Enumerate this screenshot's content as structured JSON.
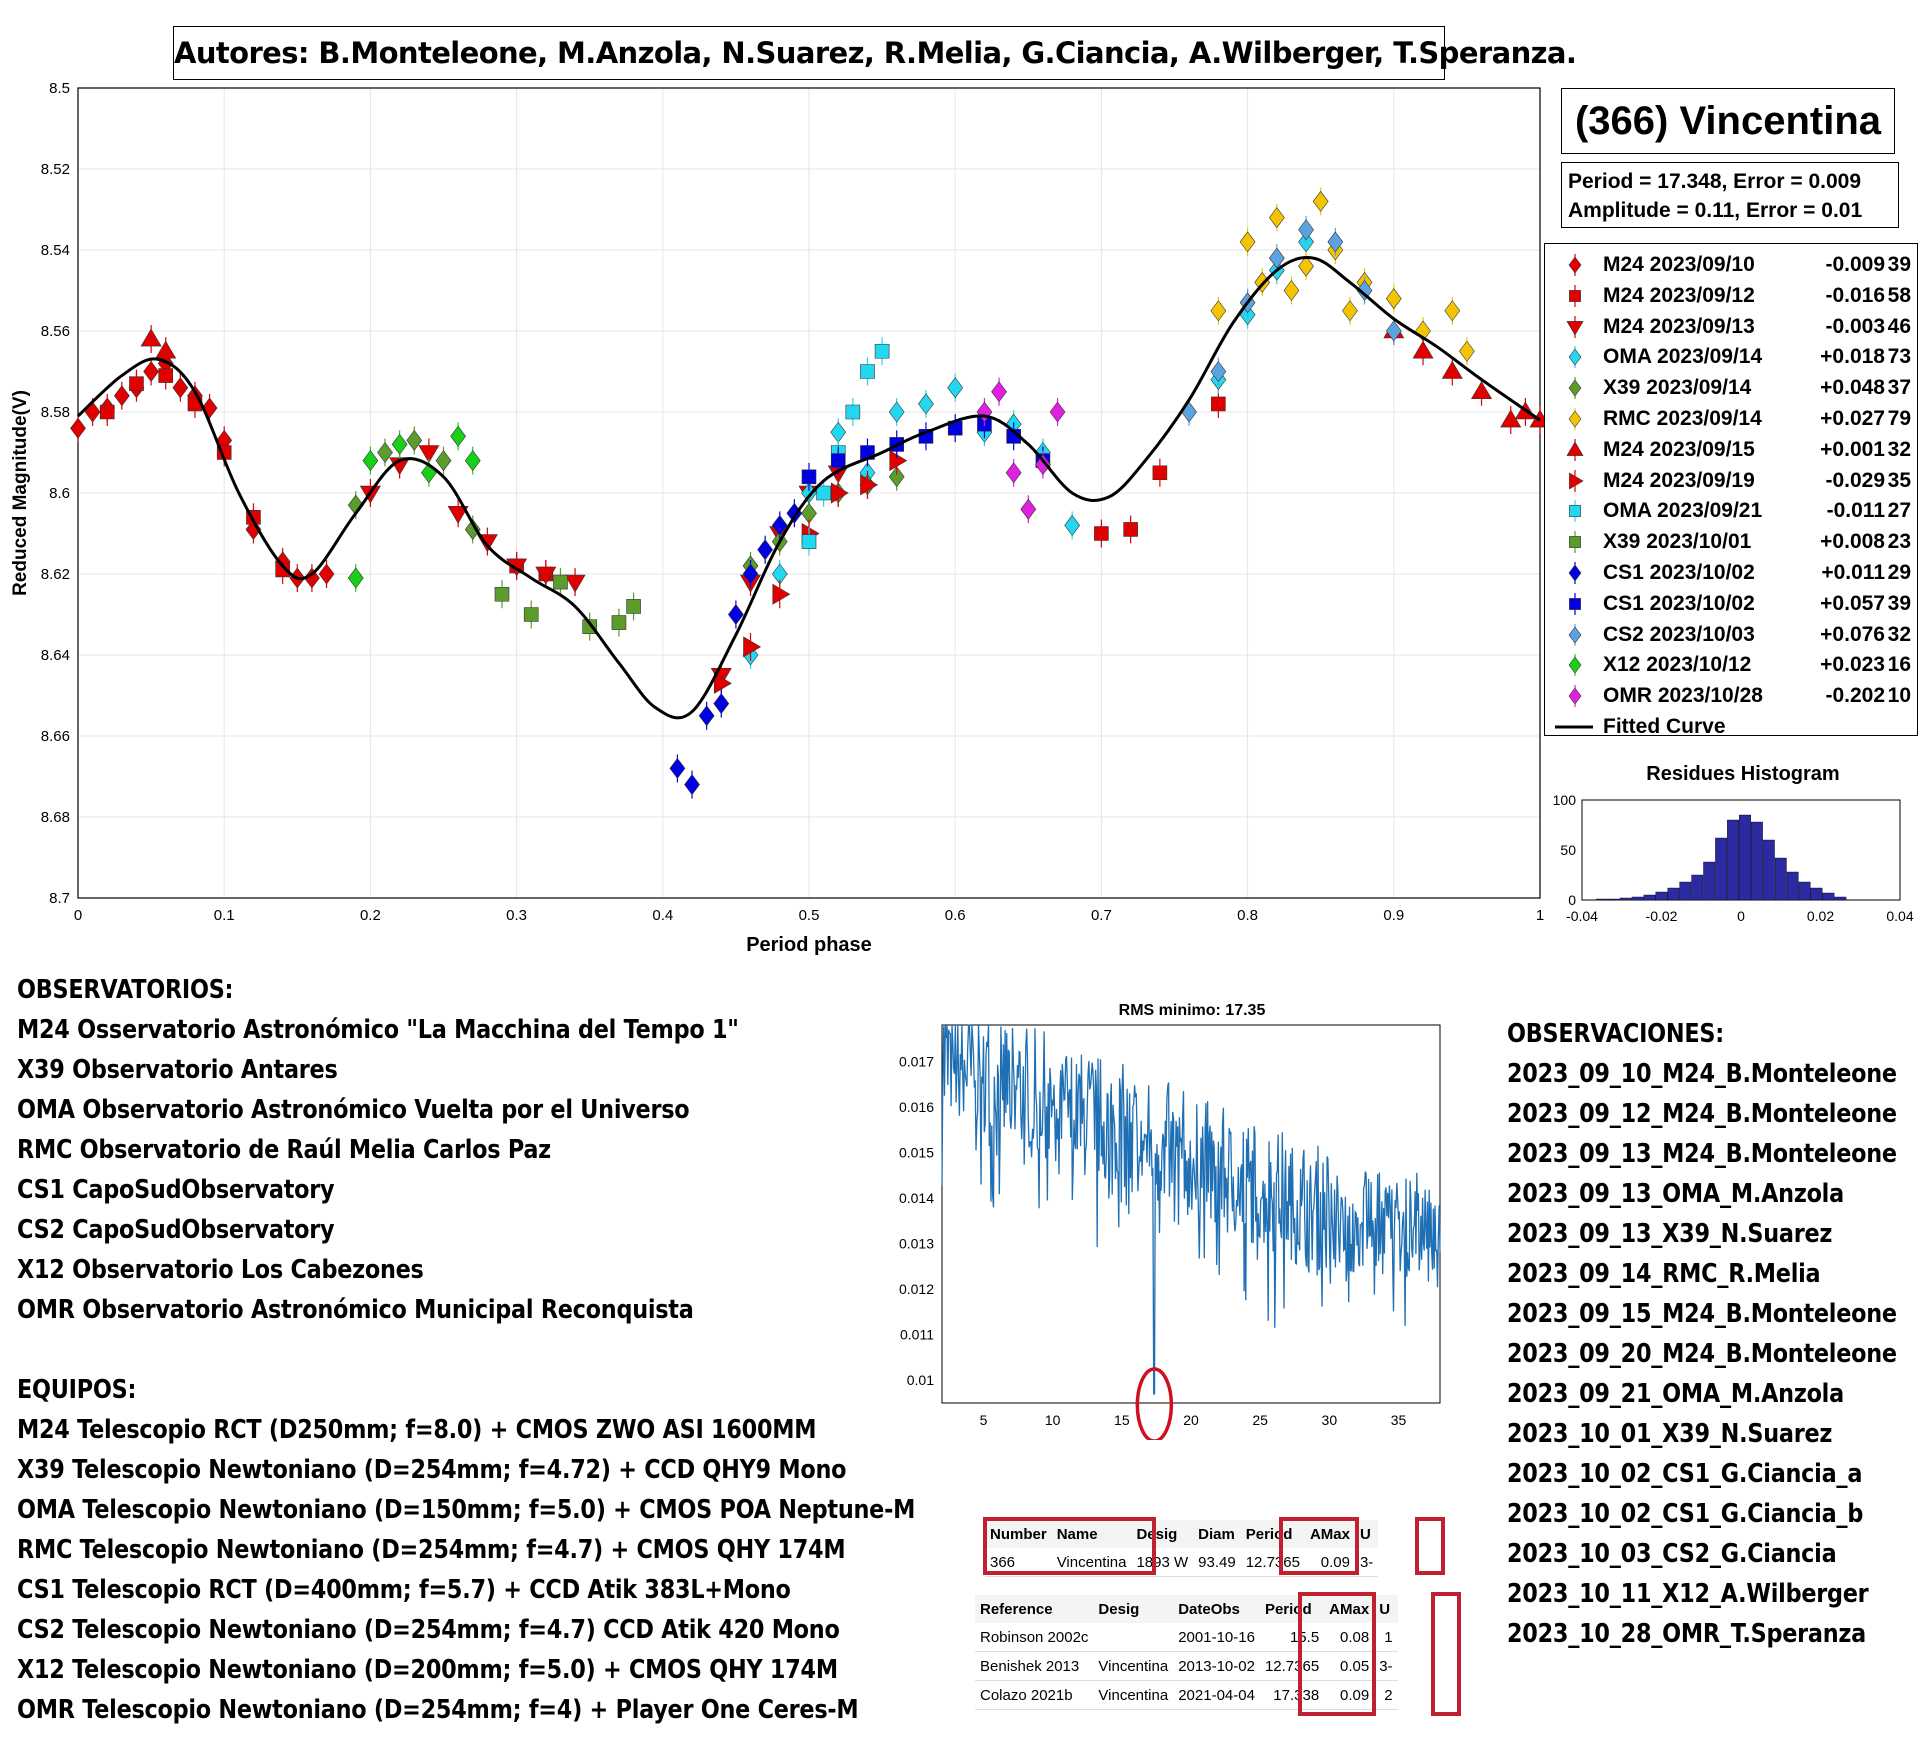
{
  "authors": "Autores: B.Monteleone, M.Anzola, N.Suarez, R.Melia, G.Ciancia, A.Wilberger, T.Speranza.",
  "object_title": "(366) Vincentina",
  "stats": {
    "period_line": "Period =  17.348, Error = 0.009",
    "amplitude_line": "Amplitude = 0.11, Error = 0.01"
  },
  "legend": [
    {
      "date": "M24 2023/09/10",
      "offset": "-0.009",
      "n": "39",
      "color": "#e00000",
      "marker": "diamond"
    },
    {
      "date": "M24 2023/09/12",
      "offset": "-0.016",
      "n": "58",
      "color": "#e00000",
      "marker": "square"
    },
    {
      "date": "M24 2023/09/13",
      "offset": "-0.003",
      "n": "46",
      "color": "#e00000",
      "marker": "triangle-down"
    },
    {
      "date": "OMA 2023/09/14",
      "offset": "+0.018",
      "n": "73",
      "color": "#22d8ee",
      "marker": "diamond"
    },
    {
      "date": "X39 2023/09/14",
      "offset": "+0.048",
      "n": "37",
      "color": "#5c9c2c",
      "marker": "diamond"
    },
    {
      "date": "RMC 2023/09/14",
      "offset": "+0.027",
      "n": "79",
      "color": "#f5c400",
      "marker": "diamond"
    },
    {
      "date": "M24 2023/09/15",
      "offset": "+0.001",
      "n": "32",
      "color": "#e00000",
      "marker": "triangle-up"
    },
    {
      "date": "M24 2023/09/19",
      "offset": "-0.029",
      "n": "35",
      "color": "#e00000",
      "marker": "triangle-right"
    },
    {
      "date": "OMA 2023/09/21",
      "offset": "-0.011",
      "n": "27",
      "color": "#22d8ee",
      "marker": "square"
    },
    {
      "date": "X39 2023/10/01",
      "offset": "+0.008",
      "n": "23",
      "color": "#5c9c2c",
      "marker": "square"
    },
    {
      "date": "CS1 2023/10/02",
      "offset": "+0.011",
      "n": "29",
      "color": "#0000e0",
      "marker": "diamond"
    },
    {
      "date": "CS1 2023/10/02",
      "offset": "+0.057",
      "n": "39",
      "color": "#0000e0",
      "marker": "square"
    },
    {
      "date": "CS2 2023/10/03",
      "offset": "+0.076",
      "n": "32",
      "color": "#5ba3e0",
      "marker": "diamond"
    },
    {
      "date": "X12 2023/10/12",
      "offset": "+0.023",
      "n": "16",
      "color": "#18d018",
      "marker": "diamond"
    },
    {
      "date": "OMR 2023/10/28",
      "offset": "-0.202",
      "n": "10",
      "color": "#e020e0",
      "marker": "diamond"
    },
    {
      "date": "Fitted Curve",
      "offset": "",
      "n": "",
      "color": "#000000",
      "marker": "line"
    }
  ],
  "chart_data": [
    {
      "type": "scatter",
      "title": "",
      "xlabel": "Period phase",
      "ylabel": "Reduced Magnitude(V)",
      "xlim": [
        0,
        1
      ],
      "ylim": [
        8.5,
        8.7
      ],
      "y_reversed": true,
      "x_ticks": [
        "0",
        "0.1",
        "0.2",
        "0.3",
        "0.4",
        "0.5",
        "0.6",
        "0.7",
        "0.8",
        "0.9",
        "1"
      ],
      "y_ticks": [
        "8.5",
        "8.52",
        "8.54",
        "8.56",
        "8.58",
        "8.6",
        "8.62",
        "8.64",
        "8.66",
        "8.68",
        "8.7"
      ],
      "grid": true,
      "legend_position": "right",
      "fitted_curve": {
        "name": "Fitted Curve",
        "x": [
          0,
          0.03,
          0.055,
          0.08,
          0.11,
          0.14,
          0.16,
          0.19,
          0.22,
          0.25,
          0.28,
          0.31,
          0.34,
          0.37,
          0.395,
          0.42,
          0.45,
          0.48,
          0.51,
          0.55,
          0.58,
          0.62,
          0.65,
          0.68,
          0.705,
          0.73,
          0.76,
          0.79,
          0.82,
          0.845,
          0.87,
          0.9,
          0.93,
          0.96,
          1.0
        ],
        "y": [
          8.581,
          8.571,
          8.567,
          8.575,
          8.6,
          8.618,
          8.62,
          8.605,
          8.592,
          8.596,
          8.613,
          8.621,
          8.628,
          8.642,
          8.653,
          8.654,
          8.635,
          8.612,
          8.597,
          8.59,
          8.585,
          8.581,
          8.588,
          8.6,
          8.601,
          8.592,
          8.577,
          8.558,
          8.545,
          8.542,
          8.548,
          8.557,
          8.564,
          8.572,
          8.582
        ]
      },
      "series": [
        {
          "name": "M24 2023/09/10",
          "x": [
            0.0,
            0.01,
            0.02,
            0.03,
            0.04,
            0.05,
            0.06,
            0.07,
            0.08,
            0.09,
            0.1,
            0.12,
            0.14,
            0.15,
            0.16,
            0.17
          ],
          "y": [
            8.584,
            8.58,
            8.579,
            8.576,
            8.574,
            8.57,
            8.568,
            8.574,
            8.576,
            8.579,
            8.587,
            8.609,
            8.617,
            8.621,
            8.621,
            8.62
          ]
        },
        {
          "name": "M24 2023/09/12",
          "x": [
            0.02,
            0.04,
            0.06,
            0.08,
            0.1,
            0.12,
            0.14,
            0.3,
            0.32,
            0.7,
            0.72,
            0.74,
            0.78
          ],
          "y": [
            8.58,
            8.573,
            8.571,
            8.578,
            8.59,
            8.606,
            8.619,
            8.618,
            8.62,
            8.61,
            8.609,
            8.595,
            8.578
          ]
        },
        {
          "name": "M24 2023/09/13",
          "x": [
            0.2,
            0.22,
            0.24,
            0.26,
            0.28,
            0.3,
            0.32,
            0.34,
            0.44,
            0.46,
            0.48,
            0.5,
            0.52
          ],
          "y": [
            8.6,
            8.593,
            8.59,
            8.605,
            8.612,
            8.618,
            8.62,
            8.622,
            8.645,
            8.622,
            8.61,
            8.6,
            8.595
          ]
        },
        {
          "name": "OMA 2023/09/14",
          "x": [
            0.46,
            0.48,
            0.5,
            0.52,
            0.54,
            0.56,
            0.58,
            0.6,
            0.62,
            0.64,
            0.66,
            0.68,
            0.78,
            0.8,
            0.82,
            0.84
          ],
          "y": [
            8.64,
            8.62,
            8.6,
            8.585,
            8.595,
            8.58,
            8.578,
            8.574,
            8.585,
            8.583,
            8.59,
            8.608,
            8.572,
            8.556,
            8.545,
            8.538
          ]
        },
        {
          "name": "X39 2023/09/14",
          "x": [
            0.19,
            0.21,
            0.23,
            0.25,
            0.27,
            0.46,
            0.48,
            0.5,
            0.52,
            0.54,
            0.56
          ],
          "y": [
            8.603,
            8.59,
            8.587,
            8.592,
            8.609,
            8.618,
            8.612,
            8.605,
            8.6,
            8.598,
            8.596
          ]
        },
        {
          "name": "RMC 2023/09/14",
          "x": [
            0.78,
            0.8,
            0.81,
            0.82,
            0.83,
            0.84,
            0.85,
            0.86,
            0.87,
            0.88,
            0.9,
            0.92,
            0.94,
            0.95
          ],
          "y": [
            8.555,
            8.538,
            8.548,
            8.532,
            8.55,
            8.544,
            8.528,
            8.54,
            8.555,
            8.548,
            8.552,
            8.56,
            8.555,
            8.565
          ]
        },
        {
          "name": "M24 2023/09/15",
          "x": [
            0.05,
            0.06,
            0.9,
            0.92,
            0.94,
            0.96,
            0.98,
            0.99,
            1.0
          ],
          "y": [
            8.562,
            8.565,
            8.56,
            8.565,
            8.57,
            8.575,
            8.582,
            8.58,
            8.582
          ]
        },
        {
          "name": "M24 2023/09/19",
          "x": [
            0.44,
            0.46,
            0.48,
            0.5,
            0.52,
            0.54,
            0.56
          ],
          "y": [
            8.647,
            8.638,
            8.625,
            8.61,
            8.6,
            8.598,
            8.592
          ]
        },
        {
          "name": "OMA 2023/09/21",
          "x": [
            0.5,
            0.51,
            0.52,
            0.53,
            0.54,
            0.55
          ],
          "y": [
            8.612,
            8.6,
            8.59,
            8.58,
            8.57,
            8.565
          ]
        },
        {
          "name": "X39 2023/10/01",
          "x": [
            0.29,
            0.31,
            0.33,
            0.35,
            0.37,
            0.38
          ],
          "y": [
            8.625,
            8.63,
            8.622,
            8.633,
            8.632,
            8.628
          ]
        },
        {
          "name": "CS1 2023/10/02",
          "x": [
            0.41,
            0.42,
            0.43,
            0.44,
            0.45,
            0.46,
            0.47,
            0.48,
            0.49
          ],
          "y": [
            8.668,
            8.672,
            8.655,
            8.652,
            8.63,
            8.62,
            8.614,
            8.608,
            8.605
          ]
        },
        {
          "name": "CS1 2023/10/02",
          "x": [
            0.5,
            0.52,
            0.54,
            0.56,
            0.58,
            0.6,
            0.62,
            0.64,
            0.66
          ],
          "y": [
            8.596,
            8.592,
            8.59,
            8.588,
            8.586,
            8.584,
            8.583,
            8.586,
            8.592
          ]
        },
        {
          "name": "CS2 2023/10/03",
          "x": [
            0.76,
            0.78,
            0.8,
            0.82,
            0.84,
            0.86,
            0.88,
            0.9
          ],
          "y": [
            8.58,
            8.57,
            8.553,
            8.542,
            8.535,
            8.538,
            8.55,
            8.56
          ]
        },
        {
          "name": "X12 2023/10/12",
          "x": [
            0.19,
            0.2,
            0.22,
            0.24,
            0.26,
            0.27
          ],
          "y": [
            8.621,
            8.592,
            8.588,
            8.595,
            8.586,
            8.592
          ]
        },
        {
          "name": "OMR 2023/10/28",
          "x": [
            0.62,
            0.63,
            0.64,
            0.65,
            0.66,
            0.67
          ],
          "y": [
            8.58,
            8.575,
            8.595,
            8.604,
            8.593,
            8.58
          ]
        }
      ]
    },
    {
      "type": "bar",
      "title": "Residues Histogram",
      "xlim": [
        -0.04,
        0.04
      ],
      "ylim": [
        0,
        100
      ],
      "x_ticks": [
        "-0.04",
        "-0.02",
        "0",
        "0.02",
        "0.04"
      ],
      "y_ticks": [
        "0",
        "50",
        "100"
      ],
      "categories": [
        -0.035,
        -0.032,
        -0.029,
        -0.026,
        -0.023,
        -0.02,
        -0.017,
        -0.014,
        -0.011,
        -0.008,
        -0.005,
        -0.002,
        0.001,
        0.004,
        0.007,
        0.01,
        0.013,
        0.016,
        0.019,
        0.022,
        0.025
      ],
      "values": [
        1,
        1,
        2,
        3,
        5,
        8,
        12,
        18,
        25,
        38,
        62,
        80,
        85,
        78,
        60,
        42,
        28,
        18,
        12,
        7,
        3
      ]
    },
    {
      "type": "line",
      "title": "RMS minimo: 17.35",
      "xlim": [
        2,
        38
      ],
      "ylim": [
        0.0095,
        0.0178
      ],
      "x_ticks": [
        "5",
        "10",
        "15",
        "20",
        "25",
        "30",
        "35"
      ],
      "y_ticks": [
        "0.01",
        "0.011",
        "0.012",
        "0.013",
        "0.014",
        "0.015",
        "0.016",
        "0.017"
      ],
      "minimum_x": 17.35
    }
  ],
  "observatorios": {
    "heading": "OBSERVATORIOS:",
    "items": [
      "M24 Osservatorio Astronómico \"La Macchina del Tempo 1\"",
      "X39 Observatorio Antares",
      "OMA Observatorio Astronómico Vuelta por el Universo",
      "RMC Observatorio de Raúl Melia Carlos Paz",
      "CS1 CapoSudObservatory",
      "CS2 CapoSudObservatory",
      "X12 Observatorio Los Cabezones",
      "OMR Observatorio Astronómico Municipal Reconquista"
    ]
  },
  "equipos": {
    "heading": "EQUIPOS:",
    "items": [
      "M24 Telescopio RCT (D250mm; f=8.0) + CMOS ZWO ASI 1600MM",
      "X39 Telescopio Newtoniano (D=254mm; f=4.72) + CCD QHY9 Mono",
      "OMA Telescopio Newtoniano (D=150mm; f=5.0) + CMOS POA Neptune-M",
      "RMC Telescopio Newtoniano (D=254mm; f=4.7) + CMOS QHY 174M",
      "CS1 Telescopio RCT (D=400mm; f=5.7) + CCD Atik 383L+Mono",
      "CS2 Telescopio Newtoniano (D=254mm; f=4.7) CCD Atik 420 Mono",
      "X12 Telescopio Newtoniano (D=200mm; f=5.0) + CMOS QHY 174M",
      "OMR Telescopio Newtoniano (D=254mm; f=4) + Player One Ceres-M"
    ]
  },
  "observaciones": {
    "heading": "OBSERVACIONES:",
    "items": [
      "2023_09_10_M24_B.Monteleone",
      "2023_09_12_M24_B.Monteleone",
      "2023_09_13_M24_B.Monteleone",
      "2023_09_13_OMA_M.Anzola",
      "2023_09_13_X39_N.Suarez",
      "2023_09_14_RMC_R.Melia",
      "2023_09_15_M24_B.Monteleone",
      "2023_09_20_M24_B.Monteleone",
      "2023_09_21_OMA_M.Anzola",
      "2023_10_01_X39_N.Suarez",
      "2023_10_02_CS1_G.Ciancia_a",
      "2023_10_02_CS1_G.Ciancia_b",
      "2023_10_03_CS2_G.Ciancia",
      "2023_10_11_X12_A.Wilberger",
      "2023_10_28_OMR_T.Speranza"
    ]
  },
  "lcdb_table": {
    "headers": [
      "Number",
      "Name",
      "Desig",
      "Diam",
      "Period",
      "AMax",
      "U"
    ],
    "row": [
      "366",
      "Vincentina",
      "1893 W",
      "93.49",
      "12.7365",
      "0.09",
      "3-"
    ]
  },
  "ref_table": {
    "headers": [
      "Reference",
      "Desig",
      "DateObs",
      "Period",
      "AMax",
      "U"
    ],
    "rows": [
      [
        "Robinson 2002c",
        "",
        "2001-10-16",
        "15.5",
        "0.08",
        "1"
      ],
      [
        "Benishek 2013",
        "Vincentina",
        "2013-10-02",
        "12.7365",
        "0.05",
        "3-"
      ],
      [
        "Colazo 2021b",
        "Vincentina",
        "2021-04-04",
        "17.338",
        "0.09",
        "2"
      ]
    ]
  }
}
